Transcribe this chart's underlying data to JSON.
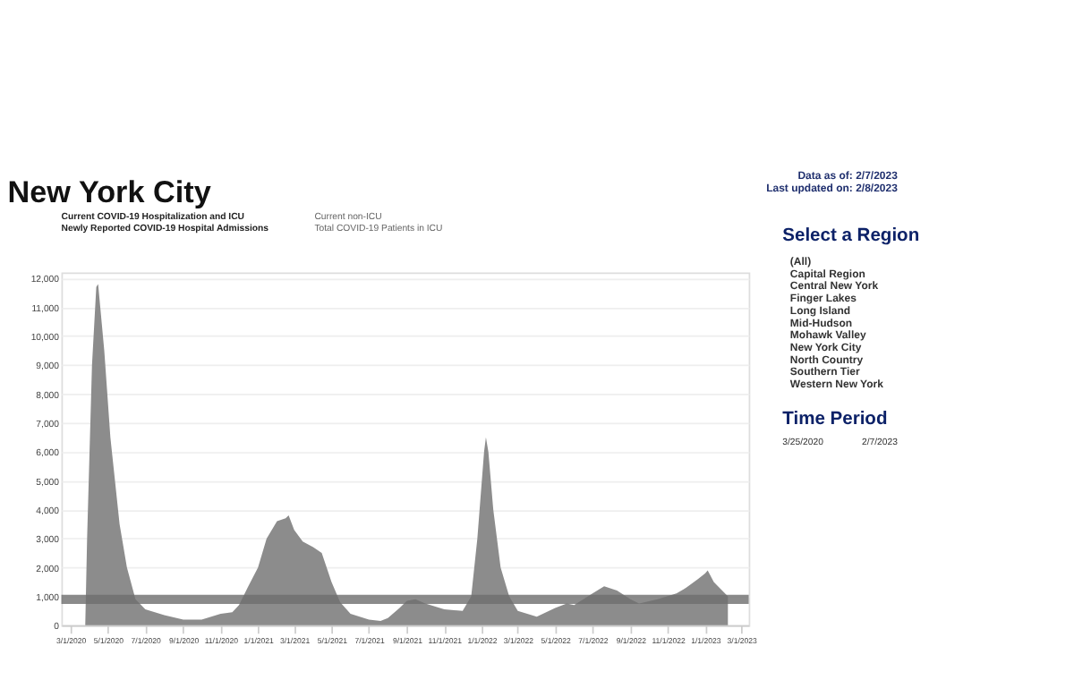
{
  "chart_data": {
    "type": "area",
    "title": "New York City",
    "annotations": [
      "Data as of: 2/7/2023",
      "Last updated on: 2/8/2023",
      "Current COVID-19 Hospitalization and ICU",
      "Newly Reported COVID-19 Hospital Admissions",
      "Current non-ICU",
      "Total COVID-19 Patients in ICU",
      "Select a Region",
      "(All)",
      "Capital Region",
      "Central New York",
      "Finger Lakes",
      "Long Island",
      "Mid-Hudson",
      "Mohawk Valley",
      "New York City",
      "North Country",
      "Southern Tier",
      "Western New York",
      "Time Period",
      "3/25/2020",
      "2/7/2023"
    ],
    "x": [
      "2020-03-25",
      "2020-03-28",
      "2020-04-05",
      "2020-04-12",
      "2020-04-15",
      "2020-04-25",
      "2020-05-05",
      "2020-05-20",
      "2020-06-01",
      "2020-06-15",
      "2020-07-01",
      "2020-08-01",
      "2020-09-01",
      "2020-10-01",
      "2020-11-01",
      "2020-11-20",
      "2020-12-01",
      "2020-12-15",
      "2021-01-01",
      "2021-01-15",
      "2021-02-01",
      "2021-02-15",
      "2021-02-20",
      "2021-03-01",
      "2021-03-15",
      "2021-04-01",
      "2021-04-15",
      "2021-05-01",
      "2021-05-15",
      "2021-06-01",
      "2021-07-01",
      "2021-07-20",
      "2021-08-01",
      "2021-08-20",
      "2021-09-01",
      "2021-09-15",
      "2021-10-01",
      "2021-11-01",
      "2021-12-01",
      "2021-12-15",
      "2021-12-25",
      "2022-01-05",
      "2022-01-08",
      "2022-01-12",
      "2022-01-20",
      "2022-02-01",
      "2022-02-15",
      "2022-03-01",
      "2022-04-01",
      "2022-05-01",
      "2022-05-20",
      "2022-06-01",
      "2022-07-01",
      "2022-07-20",
      "2022-08-10",
      "2022-09-01",
      "2022-09-15",
      "2022-10-15",
      "2022-11-15",
      "2022-12-01",
      "2022-12-20",
      "2023-01-01",
      "2023-01-05",
      "2023-01-15",
      "2023-02-07"
    ],
    "series": [
      {
        "color": "#8c8c8c",
        "values": [
          0,
          3000,
          9000,
          11700,
          11800,
          9500,
          6500,
          3500,
          2000,
          900,
          550,
          350,
          200,
          200,
          400,
          450,
          700,
          1300,
          2000,
          3000,
          3600,
          3700,
          3800,
          3300,
          2900,
          2700,
          2500,
          1500,
          800,
          400,
          200,
          150,
          250,
          600,
          850,
          900,
          750,
          550,
          500,
          1000,
          3000,
          6000,
          6500,
          6000,
          4000,
          2000,
          1000,
          500,
          300,
          600,
          750,
          700,
          1100,
          1350,
          1200,
          900,
          750,
          900,
          1100,
          1300,
          1600,
          1800,
          1900,
          1500,
          1000
        ]
      }
    ],
    "xlim": [
      "2020-02-15",
      "2023-03-13"
    ],
    "xticks": [
      {
        "value": "2020-03-01",
        "label": "3/1/2020"
      },
      {
        "value": "2020-05-01",
        "label": "5/1/2020"
      },
      {
        "value": "2020-07-01",
        "label": "7/1/2020"
      },
      {
        "value": "2020-09-01",
        "label": "9/1/2020"
      },
      {
        "value": "2020-11-01",
        "label": "11/1/2020"
      },
      {
        "value": "2021-01-01",
        "label": "1/1/2021"
      },
      {
        "value": "2021-03-01",
        "label": "3/1/2021"
      },
      {
        "value": "2021-05-01",
        "label": "5/1/2021"
      },
      {
        "value": "2021-07-01",
        "label": "7/1/2021"
      },
      {
        "value": "2021-09-01",
        "label": "9/1/2021"
      },
      {
        "value": "2021-11-01",
        "label": "11/1/2021"
      },
      {
        "value": "2022-01-01",
        "label": "1/1/2022"
      },
      {
        "value": "2022-03-01",
        "label": "3/1/2022"
      },
      {
        "value": "2022-05-01",
        "label": "5/1/2022"
      },
      {
        "value": "2022-07-01",
        "label": "7/1/2022"
      },
      {
        "value": "2022-09-01",
        "label": "9/1/2022"
      },
      {
        "value": "2022-11-01",
        "label": "11/1/2022"
      },
      {
        "value": "2023-01-01",
        "label": "1/1/2023"
      },
      {
        "value": "2023-03-01",
        "label": "3/1/2023"
      }
    ],
    "ylim": [
      0,
      12200
    ],
    "yticks": [
      0,
      {
        "value": 1000,
        "label": "1,000"
      },
      {
        "value": 2000,
        "label": "2,000"
      },
      {
        "value": 3000,
        "label": "3,000"
      },
      {
        "value": 4000,
        "label": "4,000"
      },
      {
        "value": 5000,
        "label": "5,000"
      },
      {
        "value": 6000,
        "label": "6,000"
      },
      {
        "value": 7000,
        "label": "7,000"
      },
      {
        "value": 8000,
        "label": "8,000"
      },
      {
        "value": 9000,
        "label": "9,000"
      },
      {
        "value": 10000,
        "label": "10,000"
      },
      {
        "value": 11000,
        "label": "11,000"
      },
      {
        "value": 12000,
        "label": "12,000"
      }
    ],
    "ref_lines": [
      {
        "axis": "y",
        "value": 900,
        "color": "#6e6e6e"
      }
    ],
    "grid": "y"
  }
}
